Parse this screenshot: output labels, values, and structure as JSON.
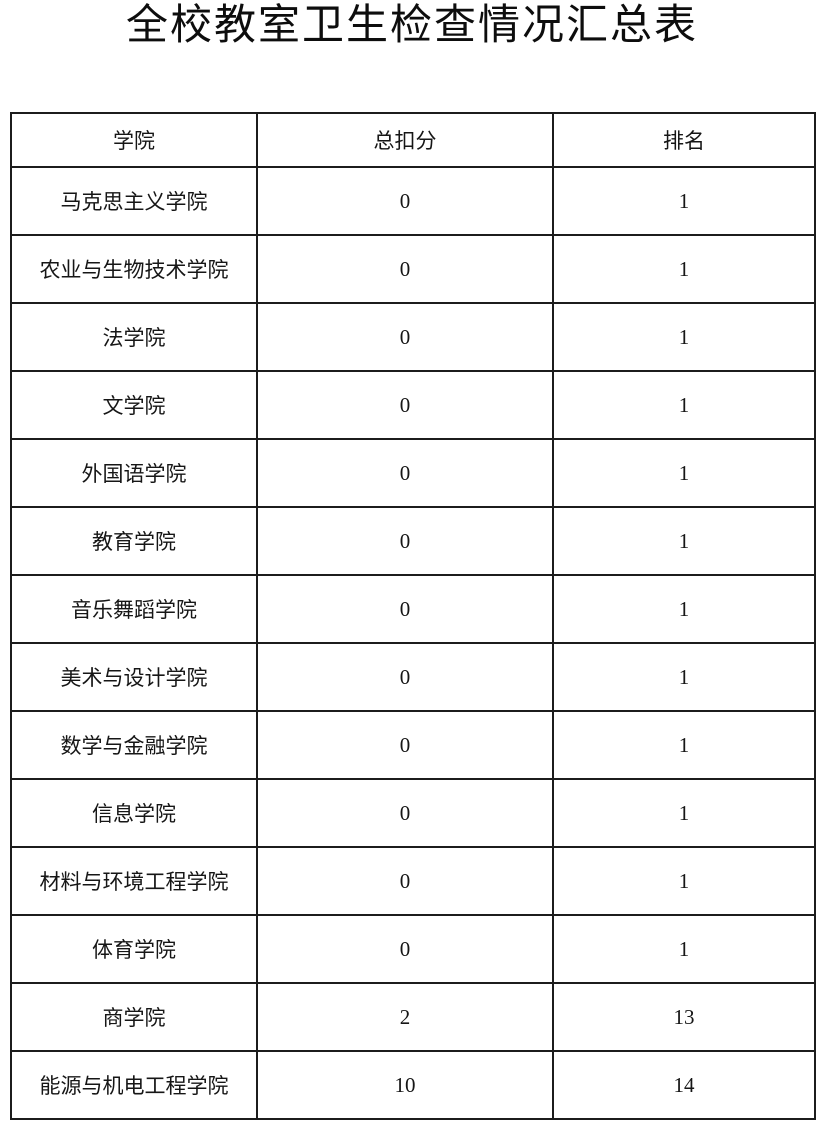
{
  "title": "全校教室卫生检查情况汇总表",
  "table": {
    "headers": [
      "学院",
      "总扣分",
      "排名"
    ],
    "rows": [
      {
        "college": "马克思主义学院",
        "deduction": "0",
        "rank": "1"
      },
      {
        "college": "农业与生物技术学院",
        "deduction": "0",
        "rank": "1"
      },
      {
        "college": "法学院",
        "deduction": "0",
        "rank": "1"
      },
      {
        "college": "文学院",
        "deduction": "0",
        "rank": "1"
      },
      {
        "college": "外国语学院",
        "deduction": "0",
        "rank": "1"
      },
      {
        "college": "教育学院",
        "deduction": "0",
        "rank": "1"
      },
      {
        "college": "音乐舞蹈学院",
        "deduction": "0",
        "rank": "1"
      },
      {
        "college": "美术与设计学院",
        "deduction": "0",
        "rank": "1"
      },
      {
        "college": "数学与金融学院",
        "deduction": "0",
        "rank": "1"
      },
      {
        "college": "信息学院",
        "deduction": "0",
        "rank": "1"
      },
      {
        "college": "材料与环境工程学院",
        "deduction": "0",
        "rank": "1"
      },
      {
        "college": "体育学院",
        "deduction": "0",
        "rank": "1"
      },
      {
        "college": "商学院",
        "deduction": "2",
        "rank": "13"
      },
      {
        "college": "能源与机电工程学院",
        "deduction": "10",
        "rank": "14"
      }
    ]
  }
}
